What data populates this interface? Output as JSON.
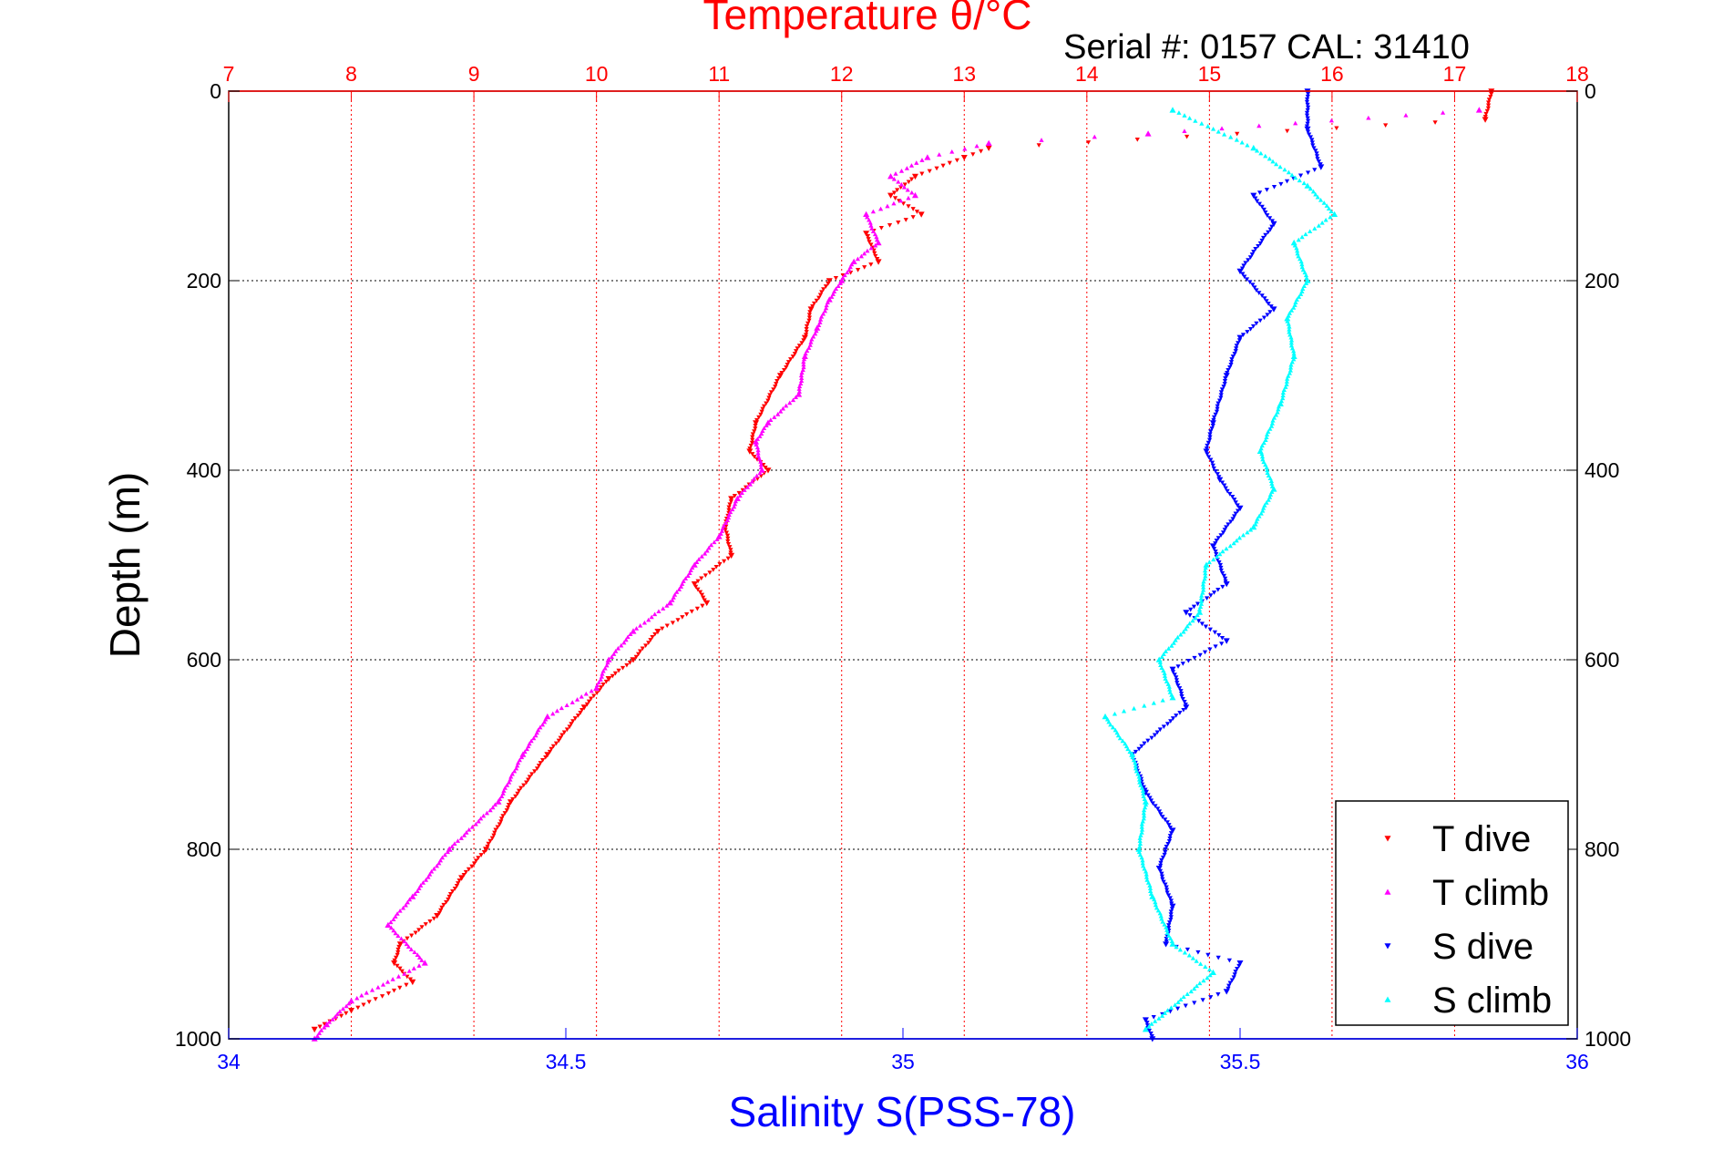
{
  "chart_data": {
    "type": "scatter",
    "title": "Temperature θ/°C",
    "subtitle": "Serial #: 0157  CAL: 31410",
    "ylabel": "Depth (m)",
    "xlabel_bottom": "Salinity S(PSS-78)",
    "ylim": [
      0,
      1000
    ],
    "y_inverted": true,
    "y_ticks": [
      "0",
      "200",
      "400",
      "600",
      "800",
      "1000"
    ],
    "temperature_axis": {
      "position": "top",
      "range": [
        7,
        18
      ],
      "ticks": [
        "7",
        "8",
        "9",
        "10",
        "11",
        "12",
        "13",
        "14",
        "15",
        "16",
        "17",
        "18"
      ]
    },
    "salinity_axis": {
      "position": "bottom",
      "range": [
        34,
        36
      ],
      "ticks": [
        "34",
        "34.5",
        "35",
        "35.5",
        "36"
      ]
    },
    "grid": true,
    "legend_position": "bottom-right",
    "series": [
      {
        "name": "T dive",
        "axis": "temperature",
        "color": "#ff0000",
        "marker": "down-triangle",
        "x": [
          17.3,
          17.25,
          13.2,
          13.0,
          12.6,
          12.4,
          12.65,
          12.2,
          12.3,
          11.9,
          11.75,
          11.7,
          11.5,
          11.3,
          11.25,
          11.4,
          11.1,
          11.05,
          11.1,
          10.8,
          10.9,
          10.5,
          10.3,
          10.1,
          9.9,
          9.6,
          9.3,
          9.1,
          8.9,
          8.7,
          8.4,
          8.35,
          8.5,
          8.0,
          7.7
        ],
        "y": [
          0,
          30,
          60,
          70,
          90,
          110,
          130,
          150,
          180,
          200,
          230,
          260,
          300,
          350,
          380,
          400,
          430,
          460,
          490,
          520,
          540,
          570,
          600,
          620,
          650,
          700,
          750,
          800,
          830,
          870,
          900,
          920,
          940,
          970,
          990
        ]
      },
      {
        "name": "T climb",
        "axis": "temperature",
        "color": "#ff00ff",
        "marker": "up-triangle",
        "x": [
          17.2,
          14.5,
          13.2,
          12.7,
          12.4,
          12.6,
          12.2,
          12.3,
          12.1,
          12.0,
          11.9,
          11.8,
          11.7,
          11.65,
          11.4,
          11.3,
          11.35,
          11.15,
          11.0,
          10.8,
          10.6,
          10.3,
          10.1,
          10.0,
          9.6,
          9.4,
          9.2,
          8.8,
          8.5,
          8.3,
          8.6,
          8.0,
          7.8,
          7.7
        ],
        "y": [
          20,
          45,
          55,
          70,
          90,
          110,
          130,
          160,
          180,
          200,
          220,
          250,
          280,
          320,
          350,
          370,
          400,
          430,
          470,
          500,
          540,
          570,
          600,
          630,
          660,
          700,
          750,
          800,
          850,
          880,
          920,
          960,
          985,
          1000
        ]
      },
      {
        "name": "S dive",
        "axis": "salinity",
        "color": "#0000ff",
        "marker": "down-triangle",
        "x": [
          35.6,
          35.6,
          35.62,
          35.52,
          35.55,
          35.5,
          35.55,
          35.5,
          35.48,
          35.46,
          35.45,
          35.47,
          35.5,
          35.46,
          35.48,
          35.42,
          35.48,
          35.4,
          35.42,
          35.34,
          35.36,
          35.4,
          35.38,
          35.4,
          35.39,
          35.5,
          35.48,
          35.36,
          35.37
        ],
        "y": [
          0,
          40,
          80,
          110,
          140,
          190,
          230,
          260,
          300,
          350,
          380,
          410,
          440,
          480,
          520,
          550,
          580,
          610,
          650,
          700,
          740,
          780,
          820,
          860,
          900,
          920,
          950,
          980,
          1000
        ]
      },
      {
        "name": "S climb",
        "axis": "salinity",
        "color": "#00ffff",
        "marker": "up-triangle",
        "x": [
          35.4,
          35.52,
          35.6,
          35.64,
          35.58,
          35.6,
          35.57,
          35.58,
          35.56,
          35.53,
          35.55,
          35.52,
          35.45,
          35.44,
          35.38,
          35.4,
          35.3,
          35.34,
          35.36,
          35.35,
          35.37,
          35.4,
          35.46,
          35.36
        ],
        "y": [
          20,
          60,
          100,
          130,
          160,
          200,
          240,
          280,
          330,
          380,
          420,
          460,
          500,
          550,
          600,
          640,
          660,
          700,
          750,
          800,
          850,
          900,
          930,
          990
        ]
      }
    ]
  }
}
